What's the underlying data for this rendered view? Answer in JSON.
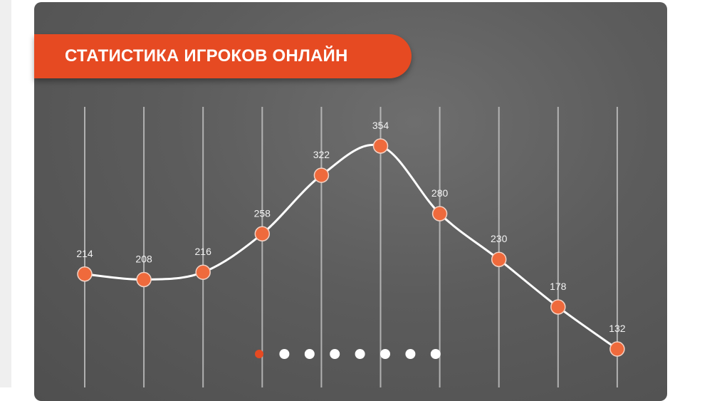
{
  "title": "СТАТИСТИКА ИГРОКОВ ОНЛАЙН",
  "colors": {
    "accent": "#e64a22",
    "point": "#ef6a3c",
    "line": "#ffffff",
    "background": "#5c5c5c"
  },
  "pagination": {
    "count": 8,
    "active": 1
  },
  "chart_data": {
    "type": "line",
    "title": "СТАТИСТИКА ИГРОКОВ ОНЛАЙН",
    "categories": [
      "",
      "",
      "",
      "",
      "",
      "",
      "",
      "",
      "",
      ""
    ],
    "values": [
      214,
      208,
      216,
      258,
      322,
      354,
      280,
      230,
      178,
      132
    ],
    "data_labels": [
      "214",
      "208",
      "216",
      "258",
      "322",
      "354",
      "280",
      "230",
      "178",
      "132"
    ],
    "smooth": true,
    "grid": "vertical",
    "xlabel": "",
    "ylabel": ""
  }
}
